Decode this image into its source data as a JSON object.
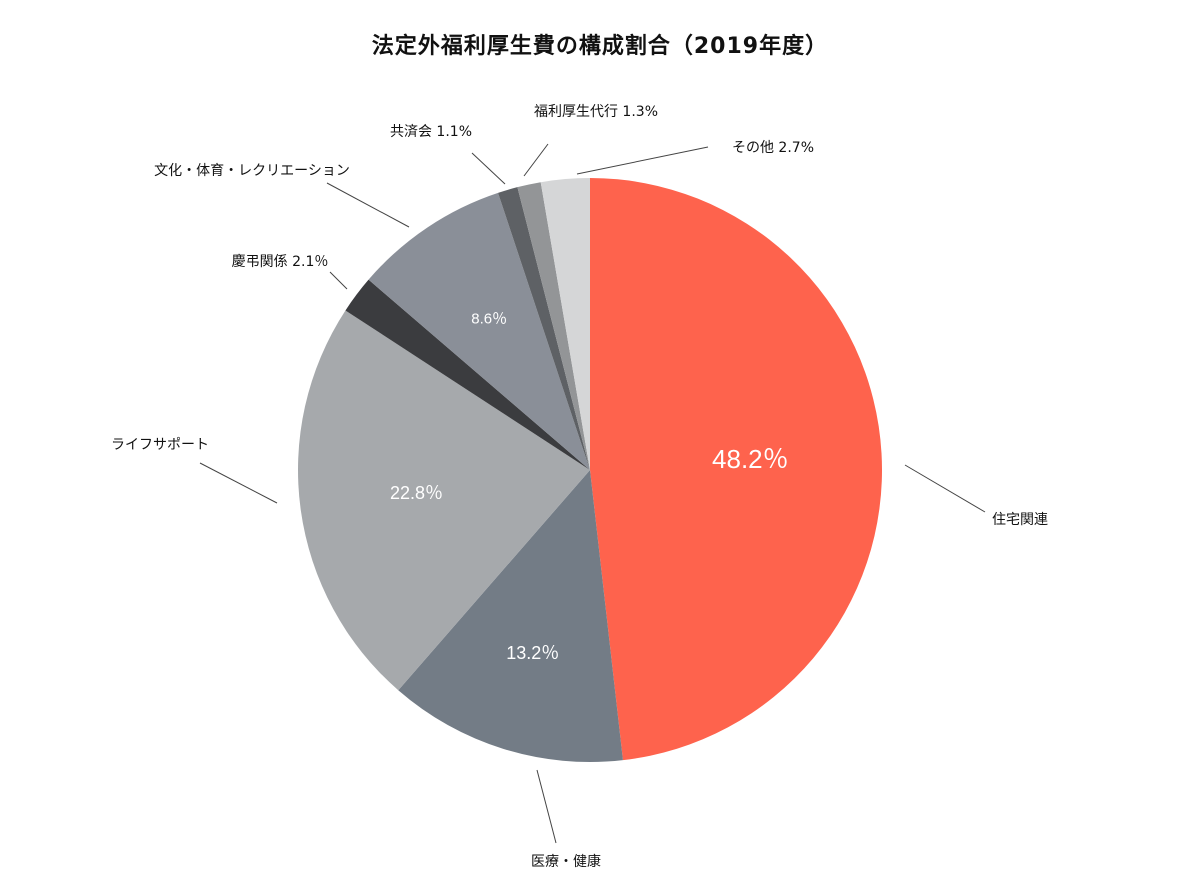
{
  "title": "法定外福利厚生費の構成割合（2019年度）",
  "chart_data": {
    "type": "pie",
    "title": "法定外福利厚生費の構成割合（2019年度）",
    "start_angle_deg": 0,
    "direction": "clockwise",
    "slices": [
      {
        "key": "housing",
        "label": "住宅関連",
        "value": 48.2,
        "color": "#fe634d",
        "inside_label": "48.2％",
        "outside_label": "住宅関連"
      },
      {
        "key": "medical",
        "label": "医療・健康",
        "value": 13.2,
        "color": "#737c86",
        "inside_label": "13.2％",
        "outside_label": "医療・健康"
      },
      {
        "key": "life",
        "label": "ライフサポート",
        "value": 22.8,
        "color": "#a6a9ac",
        "inside_label": "22.8％",
        "outside_label": "ライフサポート"
      },
      {
        "key": "ceremony",
        "label": "慶弔関係",
        "value": 2.1,
        "color": "#3b3c3f",
        "inside_label": "",
        "outside_label": "慶弔関係  2.1％"
      },
      {
        "key": "culture",
        "label": "文化・体育・レクリエーション",
        "value": 8.6,
        "color": "#8a8f98",
        "inside_label": "8.6％",
        "outside_label": "文化・体育・レクリエーション"
      },
      {
        "key": "mutual",
        "label": "共済会",
        "value": 1.1,
        "color": "#5e6165",
        "inside_label": "",
        "outside_label": "共済会  1.1%"
      },
      {
        "key": "agency",
        "label": "福利厚生代行",
        "value": 1.3,
        "color": "#939597",
        "inside_label": "",
        "outside_label": "福利厚生代行  1.3%"
      },
      {
        "key": "other",
        "label": "その他",
        "value": 2.7,
        "color": "#d5d6d7",
        "inside_label": "",
        "outside_label": "その他  2.7%"
      }
    ]
  }
}
